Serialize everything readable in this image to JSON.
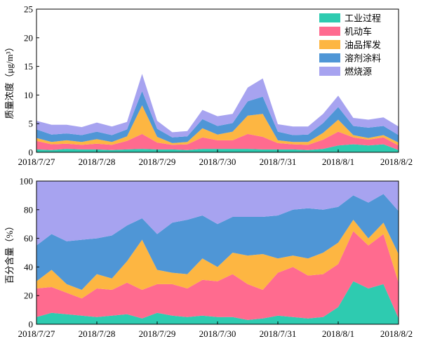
{
  "chart_data": [
    {
      "type": "area",
      "stacked": true,
      "ylabel": "质量浓度（μg/m³）",
      "ylim": [
        0,
        25
      ],
      "yticks": [
        0,
        5,
        10,
        15,
        20,
        25
      ],
      "xlim": [
        "2018/7/27 00:00",
        "2018/8/2 00:00"
      ],
      "xticks": [
        "2018/7/27",
        "2018/7/28",
        "2018/7/29",
        "2018/7/30",
        "2018/7/31",
        "2018/8/1",
        "2018/8/2"
      ],
      "legend_position": "top-right",
      "grid": false,
      "x": [
        "2018/7/27 00:00",
        "2018/7/27 06:00",
        "2018/7/27 12:00",
        "2018/7/27 18:00",
        "2018/7/28 00:00",
        "2018/7/28 06:00",
        "2018/7/28 12:00",
        "2018/7/28 18:00",
        "2018/7/29 00:00",
        "2018/7/29 06:00",
        "2018/7/29 12:00",
        "2018/7/29 18:00",
        "2018/7/30 00:00",
        "2018/7/30 06:00",
        "2018/7/30 12:00",
        "2018/7/30 18:00",
        "2018/7/31 00:00",
        "2018/7/31 06:00",
        "2018/7/31 12:00",
        "2018/7/31 18:00",
        "2018/8/1 00:00",
        "2018/8/1 06:00",
        "2018/8/1 12:00",
        "2018/8/1 18:00",
        "2018/8/2 00:00"
      ],
      "series": [
        {
          "name": "工业过程",
          "color": "#2ecbb0",
          "values": [
            0.5,
            0.4,
            0.6,
            0.5,
            0.5,
            0.4,
            0.5,
            0.6,
            0.5,
            0.5,
            0.4,
            0.6,
            0.6,
            0.6,
            0.6,
            0.5,
            0.5,
            0.5,
            0.4,
            0.6,
            1.2,
            1.4,
            1.2,
            1.4,
            0.4
          ]
        },
        {
          "name": "机动车",
          "color": "#ff6b8f",
          "values": [
            1.5,
            1.0,
            0.9,
            0.8,
            1.0,
            0.9,
            1.5,
            2.6,
            1.2,
            0.8,
            1.0,
            2.0,
            1.5,
            1.5,
            2.6,
            2.2,
            1.1,
            0.9,
            0.9,
            1.6,
            2.4,
            1.2,
            1.0,
            1.2,
            0.8
          ]
        },
        {
          "name": "油品挥发",
          "color": "#fdb642",
          "values": [
            0.5,
            0.4,
            0.6,
            0.5,
            0.8,
            0.5,
            0.8,
            5.0,
            1.0,
            0.3,
            0.4,
            1.6,
            1.0,
            1.5,
            3.2,
            4.0,
            0.5,
            0.4,
            0.5,
            1.2,
            2.1,
            0.4,
            0.3,
            0.4,
            0.5
          ]
        },
        {
          "name": "溶剂涂料",
          "color": "#4f96d6",
          "values": [
            1.5,
            1.3,
            1.2,
            1.2,
            1.3,
            1.2,
            1.2,
            2.5,
            1.4,
            1.0,
            1.0,
            1.6,
            1.5,
            1.5,
            2.5,
            3.0,
            1.5,
            1.2,
            1.3,
            1.7,
            2.2,
            1.6,
            1.8,
            1.6,
            1.3
          ]
        },
        {
          "name": "燃烧源",
          "color": "#a7a3f0",
          "values": [
            1.5,
            1.7,
            1.5,
            1.4,
            1.6,
            1.5,
            1.3,
            3.0,
            1.4,
            0.9,
            0.9,
            1.6,
            1.7,
            1.6,
            2.4,
            3.2,
            1.3,
            1.5,
            1.4,
            1.6,
            2.0,
            1.4,
            1.4,
            1.5,
            1.5
          ]
        }
      ]
    },
    {
      "type": "area",
      "stacked": true,
      "ylabel": "百分含量（%）",
      "ylim": [
        0,
        100
      ],
      "yticks": [
        0,
        20,
        40,
        60,
        80,
        100
      ],
      "xlim": [
        "2018/7/27 00:00",
        "2018/8/2 00:00"
      ],
      "xticks": [
        "2018/7/27",
        "2018/7/28",
        "2018/7/29",
        "2018/7/30",
        "2018/7/31",
        "2018/8/1",
        "2018/8/2"
      ],
      "grid": false,
      "x": [
        "2018/7/27 00:00",
        "2018/7/27 06:00",
        "2018/7/27 12:00",
        "2018/7/27 18:00",
        "2018/7/28 00:00",
        "2018/7/28 06:00",
        "2018/7/28 12:00",
        "2018/7/28 18:00",
        "2018/7/29 00:00",
        "2018/7/29 06:00",
        "2018/7/29 12:00",
        "2018/7/29 18:00",
        "2018/7/30 00:00",
        "2018/7/30 06:00",
        "2018/7/30 12:00",
        "2018/7/30 18:00",
        "2018/7/31 00:00",
        "2018/7/31 06:00",
        "2018/7/31 12:00",
        "2018/7/31 18:00",
        "2018/8/1 00:00",
        "2018/8/1 06:00",
        "2018/8/1 12:00",
        "2018/8/1 18:00",
        "2018/8/2 00:00"
      ],
      "series": [
        {
          "name": "工业过程",
          "values": [
            5,
            8,
            7,
            6,
            5,
            6,
            7,
            4,
            8,
            6,
            5,
            6,
            5,
            5,
            3,
            4,
            6,
            5,
            4,
            5,
            12,
            30,
            25,
            28,
            4
          ]
        },
        {
          "name": "机动车",
          "values": [
            20,
            18,
            15,
            12,
            20,
            18,
            22,
            20,
            20,
            22,
            20,
            25,
            25,
            30,
            25,
            20,
            30,
            35,
            30,
            30,
            30,
            35,
            30,
            35,
            25
          ]
        },
        {
          "name": "油品挥发",
          "values": [
            5,
            12,
            6,
            6,
            10,
            8,
            15,
            35,
            10,
            8,
            10,
            15,
            10,
            15,
            20,
            25,
            10,
            8,
            12,
            15,
            15,
            8,
            5,
            8,
            20
          ]
        },
        {
          "name": "溶剂涂料",
          "values": [
            25,
            25,
            30,
            35,
            25,
            30,
            25,
            15,
            25,
            35,
            38,
            30,
            30,
            25,
            27,
            26,
            30,
            32,
            35,
            30,
            25,
            17,
            25,
            20,
            30
          ]
        },
        {
          "name": "燃烧源",
          "values": [
            45,
            37,
            42,
            41,
            40,
            38,
            31,
            26,
            37,
            29,
            27,
            24,
            30,
            25,
            25,
            25,
            24,
            20,
            19,
            20,
            18,
            10,
            15,
            9,
            21
          ]
        }
      ]
    }
  ]
}
